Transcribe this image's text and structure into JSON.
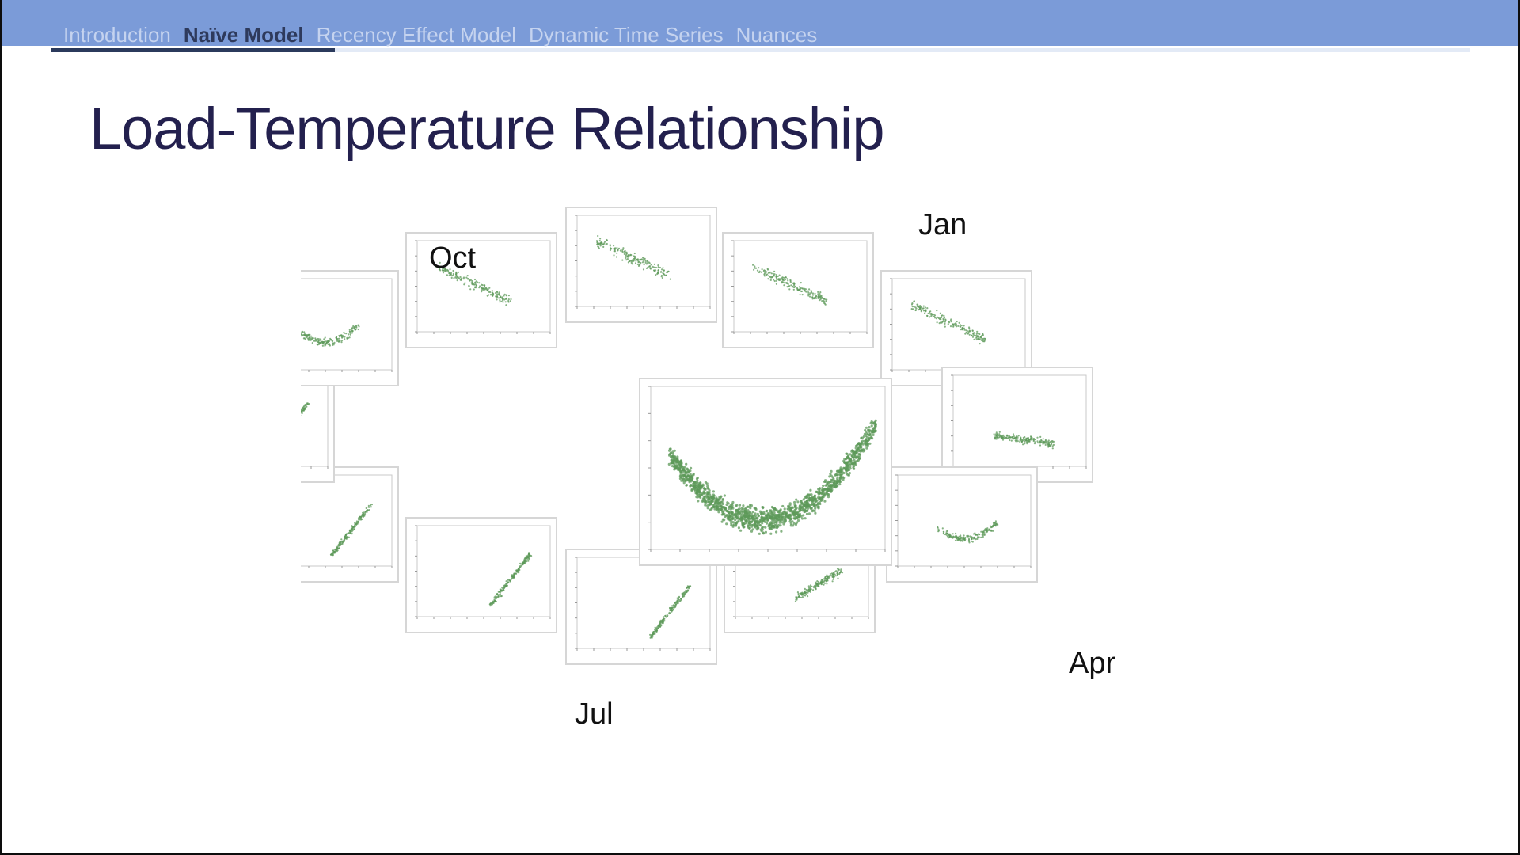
{
  "nav": {
    "items": [
      "Introduction",
      "Naïve Model",
      "Recency Effect Model",
      "Dynamic Time Series",
      "Nuances"
    ],
    "active": 1,
    "progress": 0.2
  },
  "slide": {
    "title": "Load-Temperature Relationship"
  },
  "figure": {
    "month_labels": [
      "Jan",
      "Apr",
      "Jul",
      "Oct"
    ],
    "point_color": "#5e9a59"
  }
}
